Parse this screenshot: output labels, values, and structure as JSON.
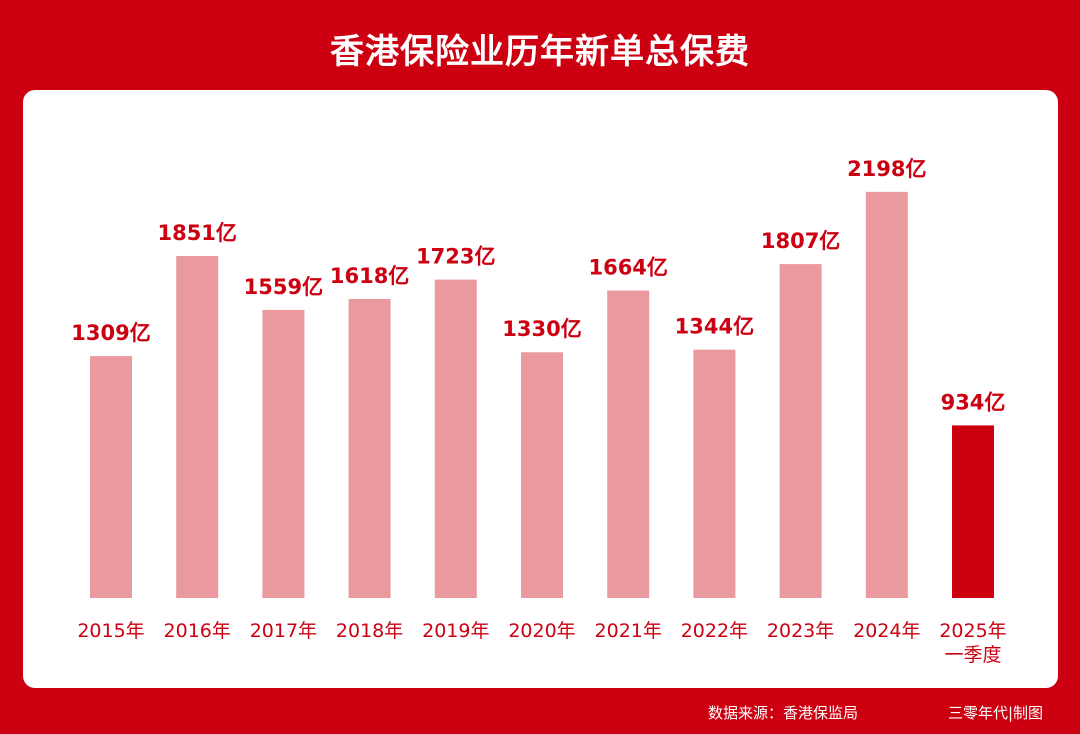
{
  "title": "香港保险业历年新单总保费",
  "footer": {
    "source": "数据来源：香港保监局",
    "credit": "三零年代|制图"
  },
  "colors": {
    "background": "#CC0011",
    "bar_normal": "#EA9A9F",
    "bar_highlight": "#CC0011",
    "label": "#CC0011"
  },
  "chart_data": {
    "type": "bar",
    "title": "香港保险业历年新单总保费",
    "categories": [
      "2015年",
      "2016年",
      "2017年",
      "2018年",
      "2019年",
      "2020年",
      "2021年",
      "2022年",
      "2023年",
      "2024年",
      "2025年\n一季度"
    ],
    "values": [
      1309,
      1851,
      1559,
      1618,
      1723,
      1330,
      1664,
      1344,
      1807,
      2198,
      934
    ],
    "value_labels": [
      "1309亿",
      "1851亿",
      "1559亿",
      "1618亿",
      "1723亿",
      "1330亿",
      "1664亿",
      "1344亿",
      "1807亿",
      "2198亿",
      "934亿"
    ],
    "highlight_index": 10,
    "xlabel": "",
    "ylabel": "",
    "ylim": [
      0,
      2300
    ],
    "grid": false,
    "legend": "none"
  }
}
